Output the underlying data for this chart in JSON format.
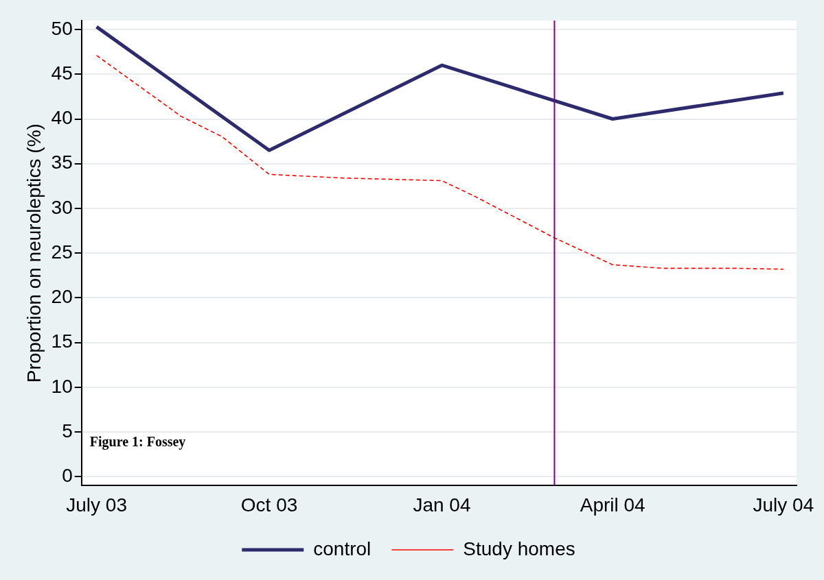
{
  "chart_data": {
    "type": "line",
    "ylabel": "Proportion on neuroleptics (%)",
    "xlim": [
      "2003-06-23",
      "2004-07-08"
    ],
    "xticks": [
      {
        "value": "2003-07",
        "label": "July 03"
      },
      {
        "value": "2003-10",
        "label": "Oct 03"
      },
      {
        "value": "2004-01",
        "label": "Jan 04"
      },
      {
        "value": "2004-04",
        "label": "April 04"
      },
      {
        "value": "2004-07",
        "label": "July 04"
      }
    ],
    "ylim": [
      -1,
      51
    ],
    "yticks": [
      0,
      5,
      10,
      15,
      20,
      25,
      30,
      35,
      40,
      45,
      50
    ],
    "grid": "y",
    "legend": "bottom",
    "series": [
      {
        "name": "control",
        "color": "#2e2a6e",
        "line_style": "solid",
        "x": [
          "2003-07",
          "2003-10",
          "2004-01",
          "2004-04",
          "2004-07"
        ],
        "values": [
          50.3,
          36.5,
          46.0,
          40.0,
          42.9
        ]
      },
      {
        "name": "Study homes",
        "color": "#ff0000",
        "line_style": "dashed",
        "x": [
          "2003-07",
          "2003-08-15",
          "2003-09-06",
          "2003-10",
          "2003-11-09",
          "2004-01",
          "2004-01-19",
          "2004-03",
          "2004-04",
          "2004-04-28",
          "2004-06-06",
          "2004-07"
        ],
        "values": [
          47.1,
          40.3,
          38.0,
          33.8,
          33.4,
          33.1,
          31.3,
          26.7,
          23.7,
          23.3,
          23.3,
          23.2
        ]
      }
    ],
    "ref_lines": [
      {
        "axis": "x",
        "value": "2004-03",
        "color": "#800080"
      }
    ],
    "annotations": [
      "Figure 1: Fossey"
    ]
  }
}
